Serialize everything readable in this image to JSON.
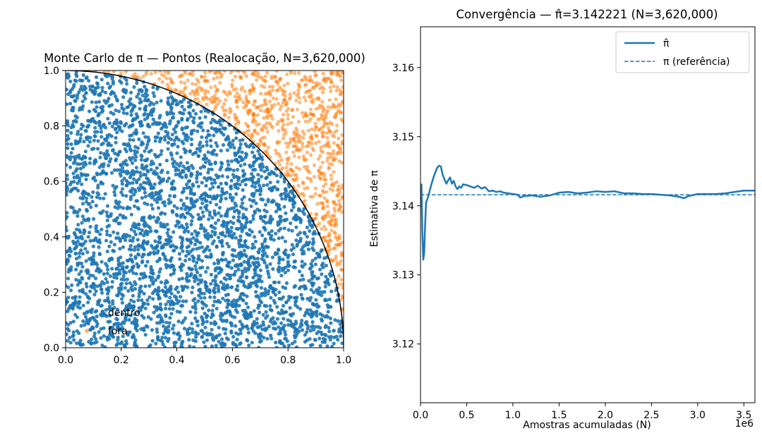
{
  "chart_data": [
    {
      "type": "scatter",
      "title": "Monte Carlo de π — Pontos (Realocação, N=3,620,000)",
      "xlabel": "",
      "ylabel": "",
      "xlim": [
        0,
        1
      ],
      "ylim": [
        0,
        1
      ],
      "xticks": [
        "0.0",
        "0.2",
        "0.4",
        "0.6",
        "0.8",
        "1.0"
      ],
      "yticks": [
        "0.0",
        "0.2",
        "0.4",
        "0.6",
        "0.8",
        "1.0"
      ],
      "grid": false,
      "legend_position": "lower-left",
      "series": [
        {
          "name": "dentro",
          "color": "#1f77b4",
          "description": "uniform random points with x²+y²≤1"
        },
        {
          "name": "fora",
          "color": "#ff7f0e",
          "description": "uniform random points with x²+y²>1"
        }
      ],
      "boundary": {
        "type": "quarter-circle",
        "radius": 1,
        "color": "#000000"
      }
    },
    {
      "type": "line",
      "title": "Convergência — π̂=3.142221 (N=3,620,000)",
      "xlabel": "Amostras acumuladas (N)",
      "ylabel": "Estimativa de π",
      "x_offset_label": "1e6",
      "xlim": [
        0,
        3620000
      ],
      "ylim": [
        3.1115,
        3.1659
      ],
      "xticks": [
        {
          "value": 0,
          "label": "0.0"
        },
        {
          "value": 500000,
          "label": "0.5"
        },
        {
          "value": 1000000,
          "label": "1.0"
        },
        {
          "value": 1500000,
          "label": "1.5"
        },
        {
          "value": 2000000,
          "label": "2.0"
        },
        {
          "value": 2500000,
          "label": "2.5"
        },
        {
          "value": 3000000,
          "label": "3.0"
        },
        {
          "value": 3500000,
          "label": "3.5"
        }
      ],
      "yticks": [
        {
          "value": 3.12,
          "label": "3.12"
        },
        {
          "value": 3.13,
          "label": "3.13"
        },
        {
          "value": 3.14,
          "label": "3.14"
        },
        {
          "value": 3.15,
          "label": "3.15"
        },
        {
          "value": 3.16,
          "label": "3.16"
        }
      ],
      "grid": false,
      "legend_position": "top-right",
      "series": [
        {
          "name": "π̂",
          "color": "#1f77b4",
          "style": "solid",
          "x": [
            10000,
            20000,
            30000,
            40000,
            50000,
            60000,
            80000,
            100000,
            120000,
            150000,
            180000,
            200000,
            220000,
            240000,
            260000,
            280000,
            300000,
            320000,
            340000,
            360000,
            380000,
            400000,
            420000,
            440000,
            460000,
            500000,
            540000,
            580000,
            620000,
            660000,
            700000,
            740000,
            780000,
            820000,
            860000,
            900000,
            950000,
            1000000,
            1050000,
            1080000,
            1120000,
            1200000,
            1300000,
            1400000,
            1500000,
            1600000,
            1700000,
            1800000,
            1900000,
            2000000,
            2100000,
            2200000,
            2300000,
            2400000,
            2500000,
            2600000,
            2700000,
            2800000,
            2850000,
            2900000,
            3000000,
            3100000,
            3200000,
            3300000,
            3400000,
            3500000,
            3620000
          ],
          "y": [
            3.1432,
            3.1362,
            3.1322,
            3.1332,
            3.1372,
            3.1405,
            3.1412,
            3.1422,
            3.1432,
            3.1445,
            3.1455,
            3.1458,
            3.1457,
            3.1445,
            3.1438,
            3.1432,
            3.1437,
            3.1441,
            3.1432,
            3.1436,
            3.1428,
            3.1424,
            3.1428,
            3.1426,
            3.1431,
            3.143,
            3.1428,
            3.1426,
            3.1429,
            3.1425,
            3.1427,
            3.1421,
            3.1422,
            3.142,
            3.1421,
            3.1419,
            3.1418,
            3.1417,
            3.1416,
            3.1412,
            3.1414,
            3.1415,
            3.1413,
            3.1415,
            3.1419,
            3.142,
            3.1418,
            3.1419,
            3.1421,
            3.142,
            3.1421,
            3.1418,
            3.1418,
            3.1417,
            3.1417,
            3.1416,
            3.1415,
            3.1413,
            3.1411,
            3.1414,
            3.1417,
            3.1417,
            3.1417,
            3.1418,
            3.142,
            3.1422,
            3.1422
          ]
        },
        {
          "name": "π (referência)",
          "color": "#1f77b4",
          "style": "dashed",
          "x": [
            0,
            3620000
          ],
          "y": [
            3.141593,
            3.141593
          ]
        }
      ]
    }
  ]
}
